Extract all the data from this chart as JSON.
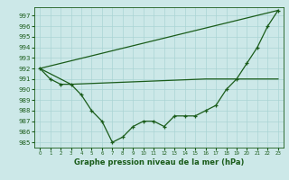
{
  "title": "Graphe pression niveau de la mer (hPa)",
  "bg_color": "#cce8e8",
  "grid_color": "#aad4d4",
  "line_color": "#1a5c1a",
  "ylim": [
    984.5,
    997.8
  ],
  "xlim": [
    -0.5,
    23.5
  ],
  "yticks": [
    985,
    986,
    987,
    988,
    989,
    990,
    991,
    992,
    993,
    994,
    995,
    996,
    997
  ],
  "xticks": [
    0,
    1,
    2,
    3,
    4,
    5,
    6,
    7,
    8,
    9,
    10,
    11,
    12,
    13,
    14,
    15,
    16,
    17,
    18,
    19,
    20,
    21,
    22,
    23
  ],
  "series1_x": [
    0,
    1,
    2,
    3,
    4,
    5,
    6,
    7,
    8,
    9,
    10,
    11,
    12,
    13,
    14,
    15,
    16,
    17,
    18,
    19,
    20,
    21,
    22,
    23
  ],
  "series1_y": [
    992,
    991,
    990.5,
    990.5,
    989.5,
    988,
    987,
    985,
    985.5,
    986.5,
    987,
    987,
    986.5,
    987.5,
    987.5,
    987.5,
    988,
    988.5,
    990,
    991,
    992.5,
    994,
    996,
    997.5
  ],
  "series2_x": [
    0,
    23
  ],
  "series2_y": [
    992,
    997.5
  ],
  "series3_x": [
    0,
    3,
    16,
    23
  ],
  "series3_y": [
    992,
    990.5,
    991,
    991
  ],
  "xlabel_fontsize": 6,
  "ytick_fontsize": 5,
  "xtick_fontsize": 4,
  "figsize": [
    3.2,
    2.0
  ],
  "dpi": 100
}
